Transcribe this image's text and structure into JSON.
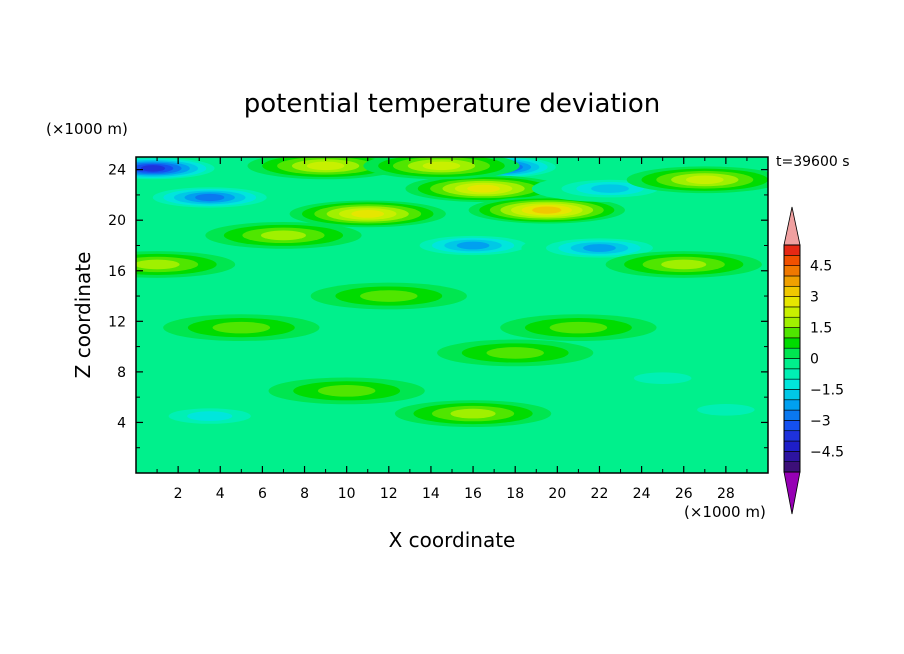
{
  "chart_data": {
    "type": "heatmap",
    "title": "potential temperature deviation",
    "xlabel": "X coordinate",
    "ylabel": "Z coordinate",
    "x_unit": "(×1000 m)",
    "y_unit": "(×1000 m)",
    "time_label": "t=39600 s",
    "xlim": [
      0,
      30
    ],
    "ylim": [
      0,
      25
    ],
    "x_ticks": [
      "2",
      "4",
      "6",
      "8",
      "10",
      "12",
      "14",
      "16",
      "18",
      "20",
      "22",
      "24",
      "26",
      "28"
    ],
    "x_tick_values": [
      2,
      4,
      6,
      8,
      10,
      12,
      14,
      16,
      18,
      20,
      22,
      24,
      26,
      28
    ],
    "y_ticks": [
      "4",
      "8",
      "12",
      "16",
      "20",
      "24"
    ],
    "y_tick_values": [
      4,
      8,
      12,
      16,
      20,
      24
    ],
    "colorbar": {
      "levels": [
        -5.5,
        -5,
        -4.5,
        -4,
        -3.5,
        -3,
        -2.5,
        -2,
        -1.5,
        -1,
        -0.5,
        0,
        0.5,
        1,
        1.5,
        2,
        2.5,
        3,
        3.5,
        4,
        4.5,
        5,
        5.5
      ],
      "tick_labels": [
        "4.5",
        "3",
        "1.5",
        "0",
        "−1.5",
        "−3",
        "−4.5"
      ],
      "tick_values": [
        4.5,
        3,
        1.5,
        0,
        -1.5,
        -3,
        -4.5
      ],
      "colors": [
        "#3c0f78",
        "#2d14a0",
        "#1e1ec8",
        "#1e32dc",
        "#1450f0",
        "#0a78f0",
        "#00a0f0",
        "#00c8e6",
        "#00e6dc",
        "#00f0b4",
        "#00f08c",
        "#00e650",
        "#00dc00",
        "#50e600",
        "#a0f000",
        "#c8f000",
        "#e6e600",
        "#f0c800",
        "#f0a000",
        "#f07800",
        "#f05000",
        "#e62814"
      ],
      "over_color": "#f0a0a0",
      "under_color": "#9600b4"
    },
    "features": [
      {
        "x": 0.8,
        "z": 24.1,
        "value": -4.0
      },
      {
        "x": 17.0,
        "z": 24.2,
        "value": -4.0
      },
      {
        "x": 3.5,
        "z": 21.8,
        "value": -3.0
      },
      {
        "x": 11.0,
        "z": 20.5,
        "value": 2.5
      },
      {
        "x": 16.5,
        "z": 22.5,
        "value": 2.5
      },
      {
        "x": 19.5,
        "z": 20.8,
        "value": 3.0
      },
      {
        "x": 9.0,
        "z": 24.3,
        "value": 2.0
      },
      {
        "x": 14.5,
        "z": 24.3,
        "value": 2.0
      },
      {
        "x": 22.5,
        "z": 22.5,
        "value": -2.0
      },
      {
        "x": 27.0,
        "z": 23.2,
        "value": 2.0
      },
      {
        "x": 16.0,
        "z": 18.0,
        "value": -2.5
      },
      {
        "x": 22.0,
        "z": 17.8,
        "value": -2.5
      },
      {
        "x": 7.0,
        "z": 18.8,
        "value": 1.5
      },
      {
        "x": 1.0,
        "z": 16.5,
        "value": 1.5
      },
      {
        "x": 26.0,
        "z": 16.5,
        "value": 1.5
      },
      {
        "x": 12.0,
        "z": 14.0,
        "value": 1.0
      },
      {
        "x": 5.0,
        "z": 11.5,
        "value": 1.0
      },
      {
        "x": 21.0,
        "z": 11.5,
        "value": 1.0
      },
      {
        "x": 18.0,
        "z": 9.5,
        "value": 1.0
      },
      {
        "x": 10.0,
        "z": 6.5,
        "value": 1.0
      },
      {
        "x": 16.0,
        "z": 4.7,
        "value": 1.5
      },
      {
        "x": 3.5,
        "z": 4.5,
        "value": -1.5
      },
      {
        "x": 28.0,
        "z": 5.0,
        "value": -1.0
      },
      {
        "x": 25.0,
        "z": 7.5,
        "value": -1.0
      }
    ]
  }
}
